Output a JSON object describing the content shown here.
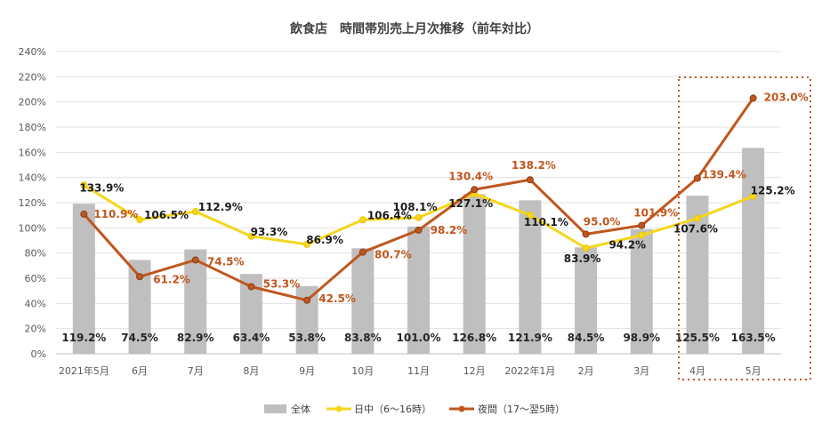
{
  "chart_data": {
    "type": "bar+line",
    "title": "飲食店　時間帯別売上月次推移（前年対比）",
    "categories": [
      "2021年5月",
      "6月",
      "7月",
      "8月",
      "9月",
      "10月",
      "11月",
      "12月",
      "2022年1月",
      "2月",
      "3月",
      "4月",
      "5月"
    ],
    "y_ticks": [
      "0%",
      "20%",
      "40%",
      "60%",
      "80%",
      "100%",
      "120%",
      "140%",
      "160%",
      "180%",
      "200%",
      "220%",
      "240%"
    ],
    "ylim": [
      0,
      240
    ],
    "grid": true,
    "legend_position": "bottom",
    "highlight": "dotted box around 4月 and 5月",
    "series": [
      {
        "name": "全体",
        "type": "bar",
        "color": "#bfbfbf",
        "values": [
          119.2,
          74.5,
          82.9,
          63.4,
          53.8,
          83.8,
          101.0,
          126.8,
          121.9,
          84.5,
          98.9,
          125.5,
          163.5
        ],
        "labels": [
          "119.2%",
          "74.5%",
          "82.9%",
          "63.4%",
          "53.8%",
          "83.8%",
          "101.0%",
          "126.8%",
          "121.9%",
          "84.5%",
          "98.9%",
          "125.5%",
          "163.5%"
        ]
      },
      {
        "name": "日中（6～16時）",
        "type": "line",
        "color": "#f5d61b",
        "values": [
          133.9,
          106.5,
          112.9,
          93.3,
          86.9,
          106.4,
          108.1,
          127.1,
          110.1,
          83.9,
          94.2,
          107.6,
          125.2
        ],
        "labels": [
          "133.9%",
          "106.5%",
          "112.9%",
          "93.3%",
          "86.9%",
          "106.4%",
          "108.1%",
          "127.1%",
          "110.1%",
          "83.9%",
          "94.2%",
          "107.6%",
          "125.2%"
        ]
      },
      {
        "name": "夜間（17～翌5時）",
        "type": "line",
        "color": "#c0561e",
        "values": [
          110.9,
          61.2,
          74.5,
          53.3,
          42.5,
          80.7,
          98.2,
          130.4,
          138.2,
          95.0,
          101.9,
          139.4,
          203.0
        ],
        "labels": [
          "110.9%",
          "61.2%",
          "74.5%",
          "53.3%",
          "42.5%",
          "80.7%",
          "98.2%",
          "130.4%",
          "138.2%",
          "95.0%",
          "101.9%",
          "139.4%",
          "203.0%"
        ]
      }
    ]
  }
}
